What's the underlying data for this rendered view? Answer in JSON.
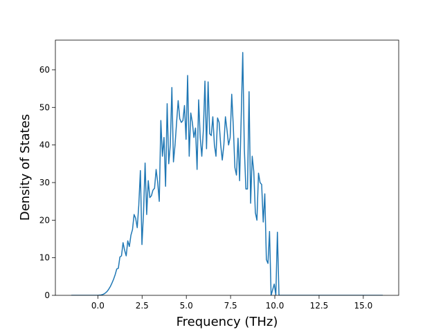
{
  "chart_data": {
    "type": "line",
    "xlabel": "Frequency (THz)",
    "ylabel": "Density of States",
    "x": [
      -1.5,
      0,
      0.089,
      0.178,
      0.267,
      0.356,
      0.445,
      0.534,
      0.623,
      0.712,
      0.801,
      0.89,
      0.979,
      1.068,
      1.157,
      1.246,
      1.335,
      1.424,
      1.513,
      1.602,
      1.691,
      1.78,
      1.869,
      1.958,
      2.047,
      2.136,
      2.225,
      2.314,
      2.403,
      2.492,
      2.581,
      2.67,
      2.759,
      2.848,
      2.937,
      3.026,
      3.115,
      3.204,
      3.293,
      3.382,
      3.471,
      3.56,
      3.649,
      3.738,
      3.827,
      3.916,
      4.005,
      4.094,
      4.183,
      4.272,
      4.361,
      4.45,
      4.539,
      4.628,
      4.717,
      4.806,
      4.895,
      4.984,
      5.073,
      5.162,
      5.251,
      5.34,
      5.429,
      5.518,
      5.607,
      5.696,
      5.785,
      5.874,
      5.963,
      6.052,
      6.141,
      6.23,
      6.319,
      6.408,
      6.497,
      6.586,
      6.675,
      6.764,
      6.853,
      6.942,
      7.031,
      7.12,
      7.209,
      7.298,
      7.387,
      7.476,
      7.565,
      7.654,
      7.743,
      7.832,
      7.921,
      8.01,
      8.099,
      8.188,
      8.277,
      8.366,
      8.455,
      8.544,
      8.633,
      8.722,
      8.811,
      8.9,
      8.989,
      9.078,
      9.167,
      9.256,
      9.345,
      9.434,
      9.523,
      9.612,
      9.701,
      9.79,
      9.879,
      9.968,
      10.057,
      10.146,
      10.235,
      16.1
    ],
    "series": [
      {
        "color": "#1f77b4",
        "values": [
          0,
          0,
          0.05,
          0.1,
          0.2,
          0.4,
          0.7,
          1.1,
          1.7,
          2.4,
          3.3,
          4.3,
          5.5,
          7.0,
          7.2,
          10.2,
          10.5,
          14,
          12,
          10.5,
          14.5,
          13,
          16,
          17.5,
          21.5,
          20.5,
          18,
          24,
          33.2,
          13.5,
          22,
          35.2,
          21.5,
          30.5,
          26,
          26.5,
          28,
          28.5,
          33.5,
          30,
          25,
          46.5,
          37,
          42,
          29,
          51,
          35,
          40,
          55.3,
          35.5,
          40,
          46,
          51.8,
          47,
          46,
          46.5,
          50.5,
          41.5,
          58.5,
          37,
          48.5,
          46,
          42,
          44.5,
          33.5,
          52,
          42,
          37,
          44,
          57,
          39,
          56.8,
          43,
          42.5,
          47.5,
          40,
          37,
          47.2,
          46,
          40,
          36,
          40,
          47.5,
          44,
          40,
          42,
          53.5,
          45,
          34,
          32,
          41.8,
          30.5,
          47,
          64.6,
          39,
          28.3,
          28.3,
          54.2,
          24.5,
          37,
          33,
          22,
          20,
          32.5,
          30,
          29.5,
          19.5,
          27,
          9.5,
          8.5,
          17,
          0,
          1.5,
          3,
          0,
          16.8,
          0,
          0
        ]
      }
    ],
    "xlim": [
      -2.4,
      17.0
    ],
    "ylim": [
      0,
      67.9
    ],
    "xticks": [
      {
        "value": 0,
        "label": "0.0"
      },
      {
        "value": 2.5,
        "label": "2.5"
      },
      {
        "value": 5,
        "label": "5.0"
      },
      {
        "value": 7.5,
        "label": "7.5"
      },
      {
        "value": 10,
        "label": "10.0"
      },
      {
        "value": 12.5,
        "label": "12.5"
      },
      {
        "value": 15,
        "label": "15.0"
      }
    ],
    "yticks": [
      0,
      10,
      20,
      30,
      40,
      50,
      60
    ]
  }
}
